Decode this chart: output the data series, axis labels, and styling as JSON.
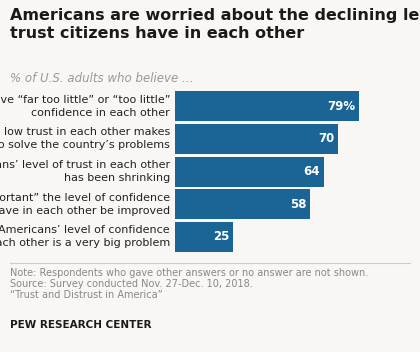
{
  "title": "Americans are worried about the declining level of\ntrust citizens have in each other",
  "subtitle": "% of U.S. adults who believe …",
  "bar_color": "#1a6496",
  "bar_labels": [
    "Americans have “far too little” or “too little”\nconfidence in each other",
    "Americans’ low trust in each other makes\nit harder to solve the country’s problems",
    "Americans’ level of trust in each other\nhas been shrinking",
    "It is “very important” the level of confidence\nAmericans have in each other be improved",
    "Americans’ level of confidence\nin each other is a very big problem"
  ],
  "values": [
    79,
    70,
    64,
    58,
    25
  ],
  "value_labels": [
    "79%",
    "70",
    "64",
    "58",
    "25"
  ],
  "note_lines": [
    "Note: Respondents who gave other answers or no answer are not shown.",
    "Source: Survey conducted Nov. 27-Dec. 10, 2018.",
    "“Trust and Distrust in America”"
  ],
  "footer": "PEW RESEARCH CENTER",
  "bg_color": "#f9f7f4",
  "bar_color_hex": "#1a6496",
  "title_fontsize": 11.5,
  "subtitle_fontsize": 8.5,
  "label_fontsize": 8,
  "value_fontsize": 8.5,
  "note_fontsize": 7,
  "footer_fontsize": 7.5
}
